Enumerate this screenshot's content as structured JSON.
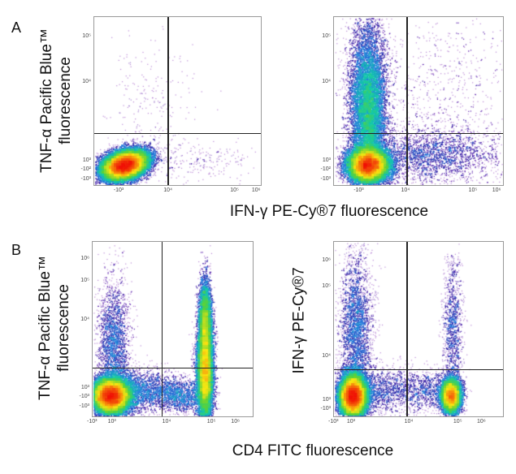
{
  "panels": {
    "a": "A",
    "b": "B"
  },
  "titles": {
    "a_ylabel_line1": "TNF-α Pacific Blue™",
    "a_ylabel_line2": "fluorescence",
    "a_xlabel": "IFN-γ PE-Cy®7 fluorescence",
    "b_left_ylabel_line1": "TNF-α Pacific Blue™",
    "b_left_ylabel_line2": "fluorescence",
    "b_right_ylabel": "IFN-γ PE-Cy®7",
    "b_xlabel": "CD4 FITC fluorescence"
  },
  "chart_data": [
    {
      "type": "scatter",
      "subtype": "density",
      "panel": "A",
      "position": "left",
      "xlabel": "IFN-γ PE-Cy®7 fluorescence",
      "ylabel": "TNF-α Pacific Blue™ fluorescence",
      "xticks": [
        "-10³",
        "10⁴",
        "10⁵",
        "10⁶"
      ],
      "yticks": [
        "10⁵",
        "10⁴",
        "10³",
        "-10²",
        "-10³"
      ],
      "quadrant_gates": true,
      "populations": [
        {
          "description": "double negative",
          "quadrant": "lower-left",
          "density": "high"
        }
      ]
    },
    {
      "type": "scatter",
      "subtype": "density",
      "panel": "A",
      "position": "right",
      "xlabel": "IFN-γ PE-Cy®7 fluorescence",
      "ylabel": "TNF-α Pacific Blue™ fluorescence",
      "xticks": [
        "-10³",
        "10⁴",
        "10⁵",
        "10⁶"
      ],
      "yticks": [
        "10⁵",
        "10⁴",
        "10³",
        "-10²",
        "-10³"
      ],
      "quadrant_gates": true,
      "populations": [
        {
          "quadrant": "lower-left",
          "density": "high"
        },
        {
          "quadrant": "upper-left",
          "density": "medium"
        },
        {
          "quadrant": "lower-right",
          "density": "low"
        },
        {
          "quadrant": "upper-right",
          "density": "low"
        }
      ]
    },
    {
      "type": "scatter",
      "subtype": "density",
      "panel": "B",
      "position": "left",
      "xlabel": "CD4 FITC fluorescence",
      "ylabel": "TNF-α Pacific Blue™ fluorescence",
      "xticks": [
        "-10³",
        "10³",
        "10⁴",
        "10⁵",
        "10⁶"
      ],
      "yticks": [
        "10⁶",
        "10⁵",
        "10⁴",
        "10³",
        "-10³",
        "-10³"
      ],
      "quadrant_gates": true,
      "populations": [
        {
          "quadrant": "lower-left",
          "density": "high"
        },
        {
          "quadrant": "upper-right",
          "density": "high",
          "shape": "vertical streak"
        }
      ]
    },
    {
      "type": "scatter",
      "subtype": "density",
      "panel": "B",
      "position": "right",
      "xlabel": "CD4 FITC fluorescence",
      "ylabel": "IFN-γ PE-Cy®7",
      "xticks": [
        "-10³",
        "10³",
        "10⁴",
        "10⁵",
        "10⁶"
      ],
      "yticks": [
        "10⁶",
        "10⁵",
        "10⁴",
        "10³",
        "-10³"
      ],
      "quadrant_gates": true,
      "populations": [
        {
          "quadrant": "lower-left",
          "density": "high"
        },
        {
          "quadrant": "upper-left",
          "density": "low"
        },
        {
          "quadrant": "lower-right",
          "density": "high"
        },
        {
          "quadrant": "upper-right",
          "density": "low"
        }
      ]
    }
  ]
}
